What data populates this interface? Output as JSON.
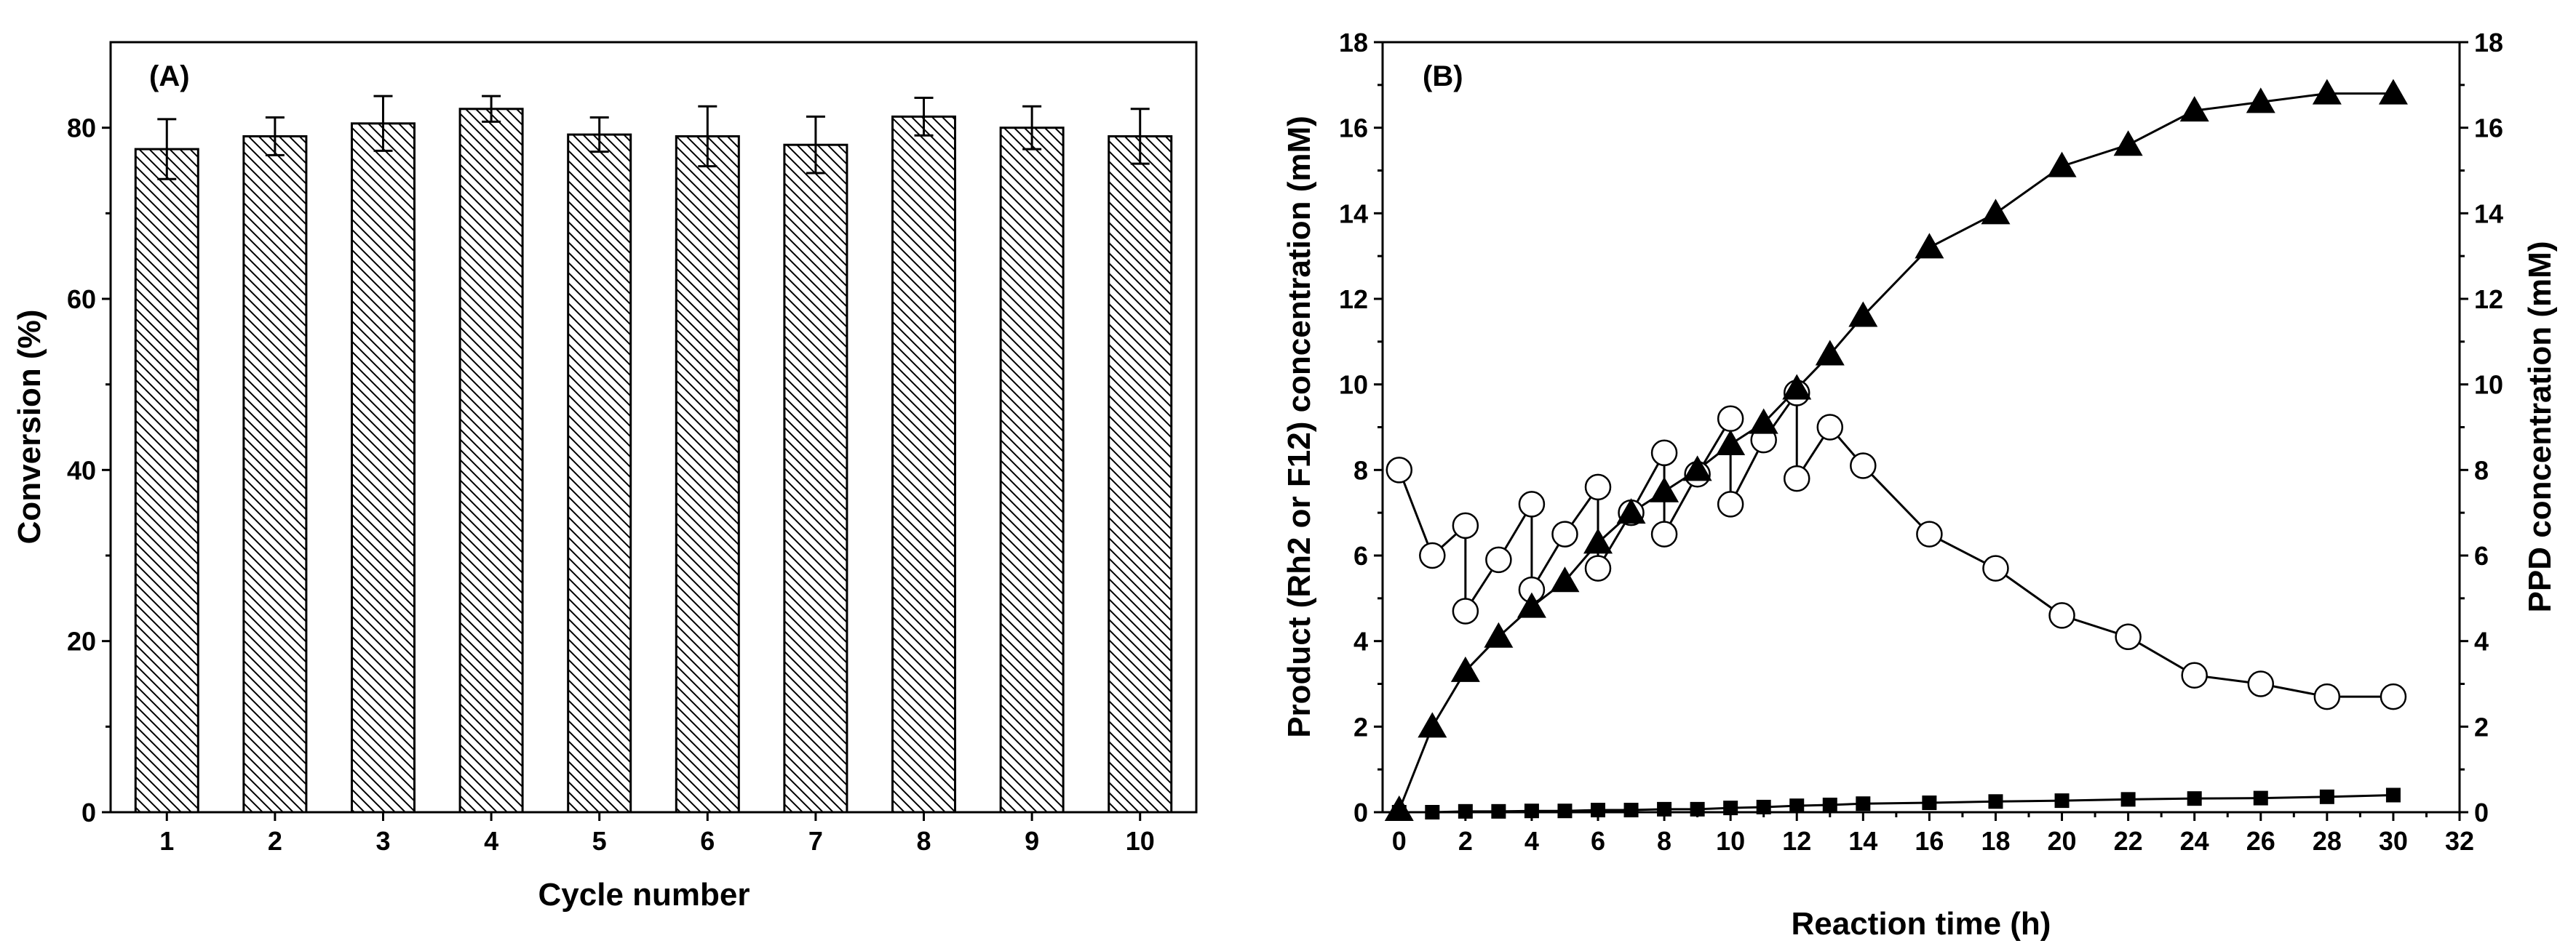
{
  "chart_data": [
    {
      "type": "bar",
      "panel_label": "(A)",
      "title": "",
      "xlabel": "Cycle number",
      "ylabel": "Conversion (%)",
      "ylim": [
        0,
        90
      ],
      "yticks": [
        0,
        20,
        40,
        60,
        80
      ],
      "categories": [
        "1",
        "2",
        "3",
        "4",
        "5",
        "6",
        "7",
        "8",
        "9",
        "10"
      ],
      "values": [
        77.5,
        79.0,
        80.5,
        82.2,
        79.2,
        79.0,
        78.0,
        81.3,
        80.0,
        79.0
      ],
      "errors": [
        3.5,
        2.2,
        3.2,
        1.5,
        2.0,
        3.5,
        3.3,
        2.2,
        2.5,
        3.2
      ],
      "bar_pattern": "diagonal-hatch"
    },
    {
      "type": "line",
      "panel_label": "(B)",
      "title": "",
      "xlabel": "Reaction time (h)",
      "ylabel": "Product (Rh2 or F12) concentration (mM)",
      "ylabel_right": "PPD concentration (mM)",
      "xlim": [
        -0.5,
        32
      ],
      "ylim": [
        0,
        18
      ],
      "xticks": [
        0,
        2,
        4,
        6,
        8,
        10,
        12,
        14,
        16,
        18,
        20,
        22,
        24,
        26,
        28,
        30,
        32
      ],
      "yticks": [
        0,
        2,
        4,
        6,
        8,
        10,
        12,
        14,
        16,
        18
      ],
      "series": [
        {
          "name": "filled triangles",
          "marker": "triangle-filled",
          "x": [
            0,
            1,
            2,
            3,
            4,
            5,
            6,
            7,
            8,
            9,
            10,
            11,
            12,
            13,
            14,
            16,
            18,
            20,
            22,
            24,
            26,
            28,
            30
          ],
          "values": [
            0.05,
            2.0,
            3.3,
            4.1,
            4.8,
            5.4,
            6.3,
            7.0,
            7.5,
            8.0,
            8.6,
            9.1,
            9.9,
            10.7,
            11.6,
            13.2,
            14.0,
            15.1,
            15.6,
            16.4,
            16.6,
            16.8,
            16.8
          ]
        },
        {
          "name": "open circles",
          "marker": "circle-open",
          "x": [
            0,
            1,
            2,
            2,
            3,
            4,
            4,
            5,
            6,
            6,
            7,
            8,
            8,
            9,
            10,
            10,
            11,
            12,
            12,
            13,
            14,
            16,
            18,
            20,
            22,
            24,
            26,
            28,
            30
          ],
          "values": [
            8.0,
            6.0,
            6.7,
            4.7,
            5.9,
            7.2,
            5.2,
            6.5,
            7.6,
            5.7,
            7.0,
            8.4,
            6.5,
            7.9,
            9.2,
            7.2,
            8.7,
            9.8,
            7.8,
            9.0,
            8.1,
            6.5,
            5.7,
            4.6,
            4.1,
            3.2,
            3.0,
            2.7,
            2.7
          ]
        },
        {
          "name": "filled squares",
          "marker": "square-filled",
          "x": [
            0,
            1,
            2,
            3,
            4,
            5,
            6,
            7,
            8,
            9,
            10,
            11,
            12,
            13,
            14,
            16,
            18,
            20,
            22,
            24,
            26,
            28,
            30
          ],
          "values": [
            0.0,
            0.0,
            0.02,
            0.02,
            0.03,
            0.03,
            0.05,
            0.05,
            0.07,
            0.07,
            0.1,
            0.12,
            0.15,
            0.17,
            0.2,
            0.22,
            0.25,
            0.27,
            0.3,
            0.32,
            0.33,
            0.36,
            0.4
          ]
        }
      ]
    }
  ]
}
